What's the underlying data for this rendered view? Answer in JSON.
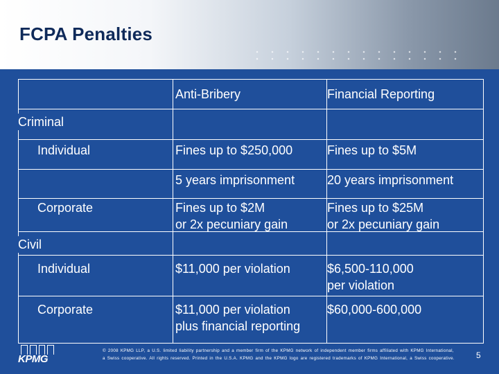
{
  "slide": {
    "title": "FCPA Penalties",
    "page_number": "5"
  },
  "table": {
    "headers": [
      "Anti-Bribery",
      "Financial Reporting"
    ],
    "sections": [
      {
        "label": "Criminal",
        "rows": [
          {
            "label": "Individual",
            "anti_bribery": "Fines up to $250,000",
            "financial_reporting": "Fines up to $5M"
          },
          {
            "label": "",
            "anti_bribery": "5 years imprisonment",
            "financial_reporting": "20 years imprisonment"
          },
          {
            "label": "Corporate",
            "anti_bribery_1": "Fines up to $2M",
            "anti_bribery_2": "or 2x pecuniary gain",
            "financial_reporting_1": "Fines up to $25M",
            "financial_reporting_2": "or 2x pecuniary gain"
          }
        ]
      },
      {
        "label": "Civil",
        "rows": [
          {
            "label": "Individual",
            "anti_bribery": "$11,000 per violation",
            "financial_reporting_1": "$6,500-110,000",
            "financial_reporting_2": "per violation"
          },
          {
            "label": "Corporate",
            "anti_bribery_1": "$11,000 per violation",
            "anti_bribery_2": "plus financial reporting",
            "financial_reporting": "$60,000-600,000"
          }
        ]
      }
    ]
  },
  "footer": {
    "logo_text": "KPMG",
    "line1": "© 2008 KPMG LLP, a U.S. limited liability partnership and a member firm of the KPMG network of independent member firms affiliated with KPMG International,",
    "line2": "a Swiss cooperative. All rights reserved. Printed in the U.S.A. KPMG and the KPMG logo are registered trademarks of KPMG International, a Swiss cooperative."
  },
  "colors": {
    "panel": "#1f4f9b",
    "title": "#0f2a5a",
    "text": "#ffffff"
  }
}
